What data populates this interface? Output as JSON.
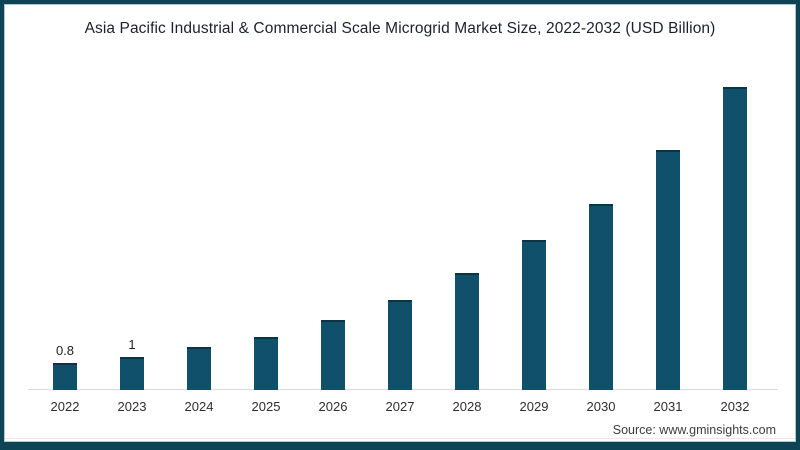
{
  "title": "Asia Pacific Industrial & Commercial Scale Microgrid Market Size, 2022-2032 (USD Billion)",
  "source": "Source: www.gminsights.com",
  "colors": {
    "frame_border": "#0d4557",
    "bar_fill": "#11506b",
    "bar_top_edge": "#0a3547",
    "axis_line": "#dcdcdc",
    "title_text": "#1b2130",
    "tick_text": "#2e2e2e"
  },
  "chart_data": {
    "type": "bar",
    "title": "Asia Pacific Industrial & Commercial Scale Microgrid Market Size, 2022-2032 (USD Billion)",
    "categories": [
      "2022",
      "2023",
      "2024",
      "2025",
      "2026",
      "2027",
      "2028",
      "2029",
      "2030",
      "2031",
      "2032"
    ],
    "values": [
      0.8,
      1,
      1.3,
      1.6,
      2.1,
      2.7,
      3.5,
      4.5,
      5.6,
      7.2,
      9.1
    ],
    "data_labels": {
      "2022": "0.8",
      "2023": "1"
    },
    "xlabel": "",
    "ylabel": "",
    "ylim": [
      0,
      10
    ],
    "gridlines": false,
    "legend": "none",
    "bar_color": "#11506b"
  }
}
